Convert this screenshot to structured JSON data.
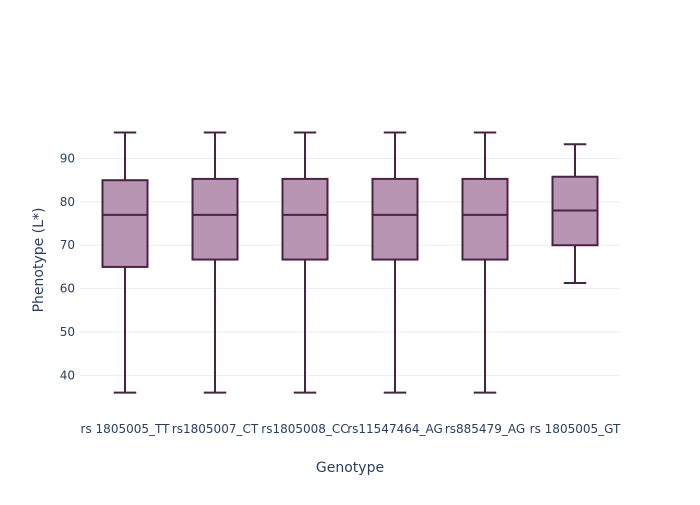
{
  "chart_data": {
    "type": "box",
    "xlabel": "Genotype",
    "ylabel": "Phenotype (L*)",
    "ylim": [
      32,
      103.5
    ],
    "yticks": [
      40,
      50,
      60,
      70,
      80,
      90
    ],
    "grid": true,
    "legend": "none",
    "categories": [
      "rs 1805005_TT",
      "rs1805007_CT",
      "rs1805008_CC",
      "rs11547464_AG",
      "rs885479_AG",
      "rs 1805005_GT"
    ],
    "boxes": [
      {
        "min": 36,
        "q1": 65,
        "median": 77,
        "q3": 85,
        "max": 96
      },
      {
        "min": 36,
        "q1": 66.7,
        "median": 77,
        "q3": 85.3,
        "max": 96
      },
      {
        "min": 36,
        "q1": 66.7,
        "median": 77,
        "q3": 85.3,
        "max": 96
      },
      {
        "min": 36,
        "q1": 66.7,
        "median": 77,
        "q3": 85.3,
        "max": 96
      },
      {
        "min": 36,
        "q1": 66.7,
        "median": 77,
        "q3": 85.3,
        "max": 96
      },
      {
        "min": 61.3,
        "q1": 70,
        "median": 78,
        "q3": 85.8,
        "max": 93.3
      }
    ]
  },
  "colors": {
    "box_fill": "#b895b2",
    "box_line": "#4a2340",
    "grid": "#ebedf2",
    "text": "#2a3f5f"
  }
}
